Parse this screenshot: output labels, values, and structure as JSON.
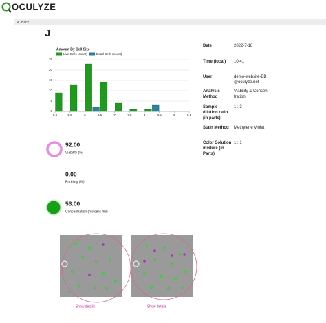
{
  "header": {
    "brand": "OCULYZE",
    "back": "Back"
  },
  "sample": {
    "title": "J"
  },
  "chart_data": {
    "type": "grouped-histogram",
    "title": "Amount By Cell Size",
    "bins": [
      5.0,
      5.5,
      6.0,
      6.5,
      7.0,
      7.5,
      8.0,
      8.5,
      9.0,
      9.5
    ],
    "series": [
      {
        "name": "Live Cells (count)",
        "color": "#1f9a1f",
        "values": [
          9,
          13,
          23,
          14,
          4,
          1,
          1,
          0,
          0
        ]
      },
      {
        "name": "Dead Cells (count)",
        "color": "#2b7fa3",
        "values": [
          0,
          0,
          2,
          0,
          0,
          0,
          3,
          0,
          0
        ]
      }
    ],
    "xlim": [
      5.0,
      9.5
    ],
    "xticks": [
      {
        "value": 5,
        "label": "5.0"
      },
      5.5,
      6,
      6.5,
      7,
      7.5,
      8,
      8.5,
      9,
      9.5
    ],
    "ylim": [
      0,
      25
    ],
    "yticks": [
      0,
      5,
      10,
      15,
      20,
      25
    ],
    "grid": true
  },
  "metrics": [
    {
      "value": "92.00",
      "label": "Viability (%)"
    },
    {
      "value": "0.00",
      "label": "Budding (%)"
    },
    {
      "value": "53.00",
      "label": "Concentration (mil cells /ml)"
    }
  ],
  "images": [
    {
      "link": "Show details"
    },
    {
      "link": "Show details"
    }
  ],
  "info": [
    {
      "label": "Date",
      "value": "2022-7-18"
    },
    {
      "label": "Time (local)",
      "value": "10:41"
    },
    {
      "label": "User",
      "value": "demo-website-BB@oculyze.net"
    },
    {
      "label": "Analysis Method",
      "value": "Viability & Concentration"
    },
    {
      "label": "Sample dilution ratio (in parts)",
      "value": "1 : 3"
    },
    {
      "label": "Stain Method",
      "value": "Methylene Violet"
    },
    {
      "label": "Color Solution mixture (in Parts)",
      "value": "1 : 1"
    }
  ]
}
